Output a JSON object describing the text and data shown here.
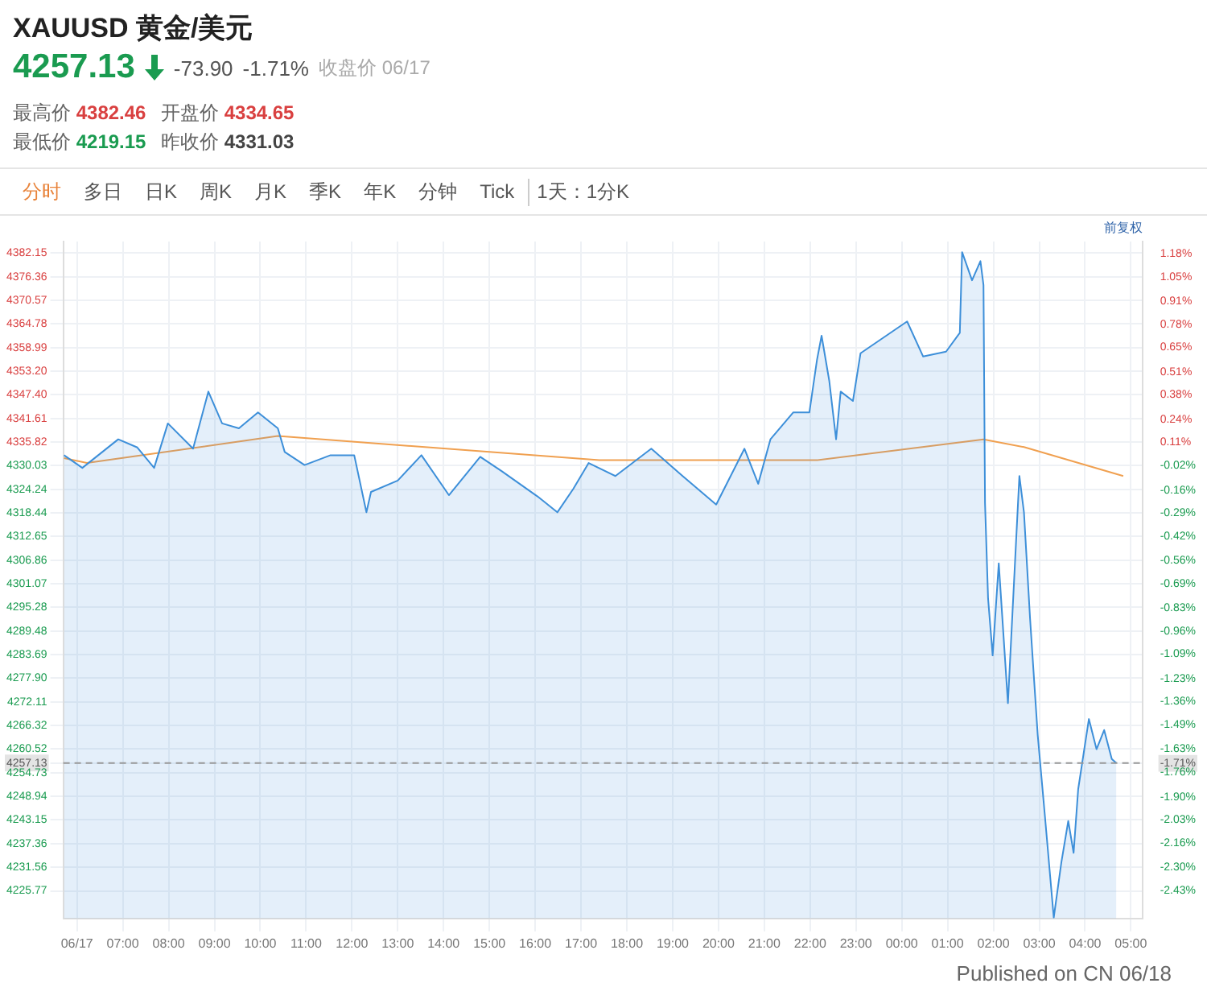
{
  "chart_data": {
    "type": "line",
    "title": "XAUUSD 黄金/美元",
    "subtitle": "4257.13",
    "annotations": [
      "-73.90",
      "-1.71%",
      "收盘价 06/17",
      "最高价",
      "4382.46",
      "开盘价",
      "4334.65",
      "最低价",
      "4219.15",
      "昨收价",
      "4331.03",
      "分时",
      "多日",
      "日K",
      "周K",
      "月K",
      "季K",
      "年K",
      "分钟",
      "Tick",
      "1天：1分K",
      "前复权",
      "Published on CN 06/18"
    ],
    "series": [
      {
        "type": "area",
        "color": "#3d8fd9",
        "x": [
          "--06-17T05:43",
          "--06-17T06:07",
          "--06-17T06:54",
          "--06-17T07:19",
          "--06-17T07:41",
          "--06-17T07:59",
          "--06-17T08:32",
          "--06-17T08:52",
          "--06-17T09:10",
          "--06-17T09:32",
          "--06-17T09:57",
          "--06-17T10:23",
          "--06-17T10:32",
          "--06-17T10:58",
          "--06-17T11:32",
          "--06-17T12:03",
          "--06-17T12:19",
          "--06-17T12:25",
          "--06-17T13:00",
          "--06-17T13:31",
          "--06-17T14:07",
          "--06-17T14:48",
          "--06-17T15:16",
          "--06-17T16:03",
          "--06-17T16:29",
          "--06-17T16:50",
          "--06-17T17:10",
          "--06-17T17:45",
          "--06-17T18:32",
          "--06-17T19:13",
          "--06-17T19:57",
          "--06-17T20:34",
          "--06-17T20:52",
          "--06-17T21:08",
          "--06-17T21:38",
          "--06-17T21:59",
          "--06-17T22:09",
          "--06-17T22:15",
          "--06-17T22:25",
          "--06-17T22:34",
          "--06-17T22:40",
          "--06-17T22:56",
          "--06-17T23:06",
          "--06-17T23:45",
          "--06-18T00:07",
          "--06-18T00:28",
          "--06-18T00:58",
          "--06-18T01:16",
          "--06-18T01:19",
          "--06-18T01:32",
          "--06-18T01:43",
          "--06-18T01:47",
          "--06-18T01:49",
          "--06-18T01:53",
          "--06-18T01:59",
          "--06-18T02:07",
          "--06-18T02:19",
          "--06-18T02:28",
          "--06-18T02:34",
          "--06-18T02:40",
          "--06-18T02:48",
          "--06-18T02:58",
          "--06-18T03:08",
          "--06-18T03:19",
          "--06-18T03:29",
          "--06-18T03:38",
          "--06-18T03:45",
          "--06-18T03:51",
          "--06-18T04:05",
          "--06-18T04:15",
          "--06-18T04:25",
          "--06-18T04:35",
          "--06-18T04:41"
        ],
        "values": [
          4332.6,
          4329.5,
          4336.5,
          4334.5,
          4329.5,
          4340.4,
          4334.2,
          4348.2,
          4340.4,
          4339.2,
          4343.1,
          4339.2,
          4333.4,
          4330.2,
          4332.6,
          4332.6,
          4318.6,
          4323.6,
          4326.4,
          4332.6,
          4322.8,
          4332.2,
          4328.7,
          4322.5,
          4318.6,
          4324.4,
          4330.7,
          4327.5,
          4334.2,
          4327.5,
          4320.5,
          4334.2,
          4325.6,
          4336.5,
          4343.1,
          4343.1,
          4356.0,
          4361.9,
          4350.9,
          4336.5,
          4348.2,
          4345.9,
          4357.6,
          4362.6,
          4365.4,
          4356.8,
          4358.0,
          4362.6,
          4382.4,
          4375.5,
          4380.2,
          4374.3,
          4320.9,
          4297.5,
          4283.5,
          4306.1,
          4271.8,
          4305.3,
          4327.5,
          4318.6,
          4292.5,
          4264.0,
          4242.9,
          4219.2,
          4232.8,
          4242.9,
          4235.1,
          4250.7,
          4267.9,
          4260.5,
          4265.2,
          4258.1,
          4257.1
        ]
      },
      {
        "type": "line",
        "color": "#f0a050",
        "x": [
          "--06-17T05:43",
          "--06-17T06:13",
          "--06-17T10:23",
          "--06-17T17:24",
          "--06-17T22:09",
          "--06-18T01:47",
          "--06-18T02:40",
          "--06-18T04:50"
        ],
        "values": [
          4331.9,
          4330.7,
          4337.3,
          4331.4,
          4331.4,
          4336.5,
          4334.6,
          4327.5
        ]
      }
    ],
    "xlim": [
      "--06-17T05:42",
      "--06-18T05:15"
    ],
    "xticks": [
      {
        "value": "--06-17T06:00",
        "label": "06/17"
      },
      {
        "value": "--06-17T07:00",
        "label": "07:00"
      },
      {
        "value": "--06-17T08:00",
        "label": "08:00"
      },
      {
        "value": "--06-17T09:00",
        "label": "09:00"
      },
      {
        "value": "--06-17T10:00",
        "label": "10:00"
      },
      {
        "value": "--06-17T11:00",
        "label": "11:00"
      },
      {
        "value": "--06-17T12:00",
        "label": "12:00"
      },
      {
        "value": "--06-17T13:00",
        "label": "13:00"
      },
      {
        "value": "--06-17T14:00",
        "label": "14:00"
      },
      {
        "value": "--06-17T15:00",
        "label": "15:00"
      },
      {
        "value": "--06-17T16:00",
        "label": "16:00"
      },
      {
        "value": "--06-17T17:00",
        "label": "17:00"
      },
      {
        "value": "--06-17T18:00",
        "label": "18:00"
      },
      {
        "value": "--06-17T19:00",
        "label": "19:00"
      },
      {
        "value": "--06-17T20:00",
        "label": "20:00"
      },
      {
        "value": "--06-17T21:00",
        "label": "21:00"
      },
      {
        "value": "--06-17T22:00",
        "label": "22:00"
      },
      {
        "value": "--06-17T23:00",
        "label": "23:00"
      },
      {
        "value": "--06-18T00:00",
        "label": "00:00"
      },
      {
        "value": "--06-18T01:00",
        "label": "01:00"
      },
      {
        "value": "--06-18T02:00",
        "label": "02:00"
      },
      {
        "value": "--06-18T03:00",
        "label": "03:00"
      },
      {
        "value": "--06-18T04:00",
        "label": "04:00"
      },
      {
        "value": "--06-18T05:00",
        "label": "05:00"
      }
    ],
    "ylim": [
      4219,
      4385
    ],
    "yticks": [
      4382.15,
      4376.36,
      4370.57,
      4364.78,
      4358.99,
      {
        "value": 4353.2,
        "label": "4353.20"
      },
      {
        "value": 4347.4,
        "label": "4347.40"
      },
      4341.61,
      4335.82,
      4330.03,
      4324.24,
      4318.44,
      4312.65,
      4306.86,
      4301.07,
      4295.28,
      4289.48,
      4283.69,
      {
        "value": 4277.9,
        "label": "4277.90"
      },
      4272.11,
      4266.32,
      4260.52,
      4257.13,
      4254.73,
      4248.94,
      4243.15,
      4237.36,
      4231.56,
      4225.77
    ],
    "y2lim": [
      -2.59,
      1.25
    ],
    "y2ticks": [
      {
        "value": 1.18,
        "label": "1.18%"
      },
      {
        "value": 1.05,
        "label": "1.05%"
      },
      {
        "value": 0.91,
        "label": "0.91%"
      },
      {
        "value": 0.78,
        "label": "0.78%"
      },
      {
        "value": 0.65,
        "label": "0.65%"
      },
      {
        "value": 0.51,
        "label": "0.51%"
      },
      {
        "value": 0.38,
        "label": "0.38%"
      },
      {
        "value": 0.24,
        "label": "0.24%"
      },
      {
        "value": 0.11,
        "label": "0.11%"
      },
      {
        "value": -0.02,
        "label": "-0.02%"
      },
      {
        "value": -0.16,
        "label": "-0.16%"
      },
      {
        "value": -0.29,
        "label": "-0.29%"
      },
      {
        "value": -0.42,
        "label": "-0.42%"
      },
      {
        "value": -0.56,
        "label": "-0.56%"
      },
      {
        "value": -0.69,
        "label": "-0.69%"
      },
      {
        "value": -0.83,
        "label": "-0.83%"
      },
      {
        "value": -0.96,
        "label": "-0.96%"
      },
      {
        "value": -1.09,
        "label": "-1.09%"
      },
      {
        "value": -1.23,
        "label": "-1.23%"
      },
      {
        "value": -1.36,
        "label": "-1.36%"
      },
      {
        "value": -1.49,
        "label": "-1.49%"
      },
      {
        "value": -1.63,
        "label": "-1.63%"
      },
      {
        "value": -1.71,
        "label": "-1.71%"
      },
      {
        "value": -1.76,
        "label": "-1.76%"
      },
      {
        "value": -1.9,
        "label": "-1.90%"
      },
      {
        "value": -2.03,
        "label": "-2.03%"
      },
      {
        "value": -2.16,
        "label": "-2.16%"
      },
      {
        "value": -2.3,
        "label": "-2.30%"
      },
      {
        "value": -2.43,
        "label": "-2.43%"
      }
    ],
    "ref_lines": [
      {
        "axis": "y",
        "value": 4257.13,
        "color": "#999999",
        "line_style": "dashed"
      }
    ],
    "grid": true,
    "legend": false,
    "marker": "none"
  }
}
